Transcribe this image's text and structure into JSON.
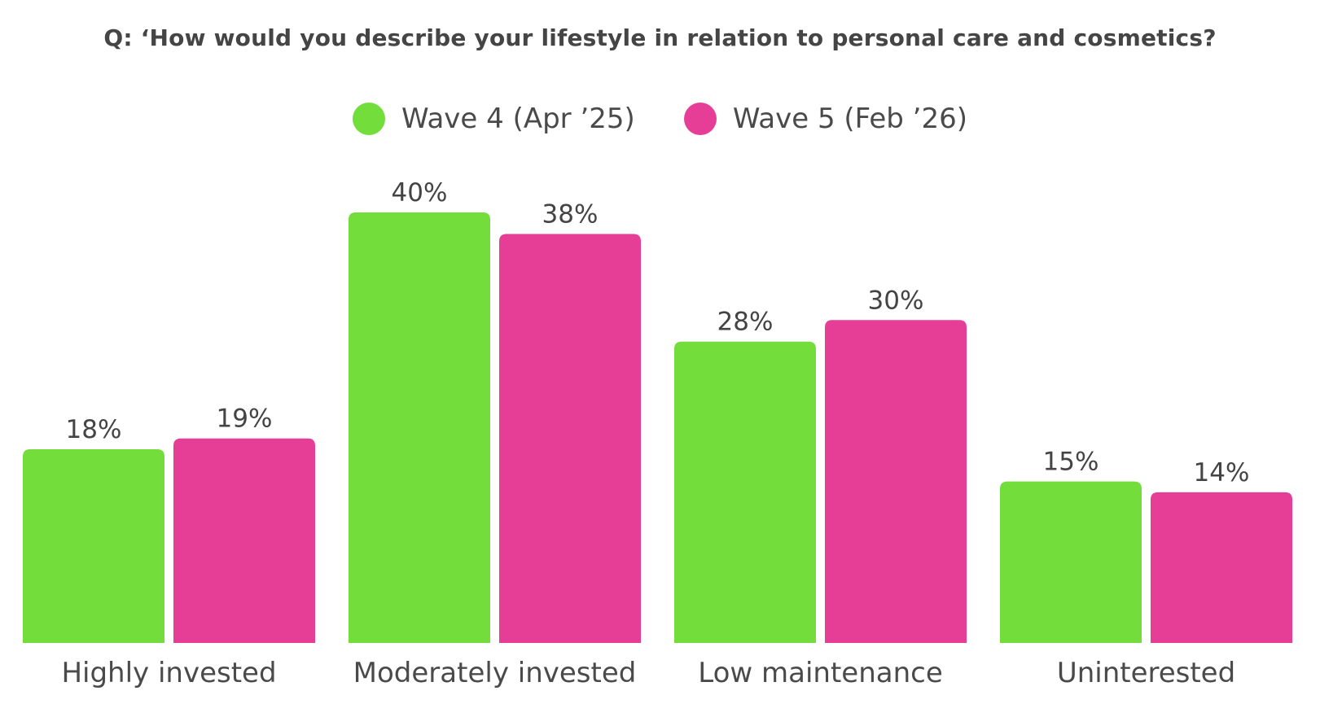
{
  "chart_data": {
    "type": "bar",
    "title": "Q: ‘How would you describe your lifestyle in relation to personal care and cosmetics?",
    "categories": [
      "Highly invested",
      "Moderately invested",
      "Low maintenance",
      "Uninterested"
    ],
    "series": [
      {
        "name": "Wave 4 (Apr ’25)",
        "color": "#72DD3B",
        "values": [
          18,
          40,
          28,
          15
        ],
        "labels": [
          "18%",
          "40%",
          "28%",
          "15%"
        ]
      },
      {
        "name": "Wave 5 (Feb ’26)",
        "color": "#E63E96",
        "values": [
          19,
          38,
          30,
          14
        ],
        "labels": [
          "19%",
          "38%",
          "30%",
          "14%"
        ]
      }
    ],
    "ylim": [
      0,
      40
    ],
    "grid": false,
    "legend_position": "top-center",
    "xlabel": "",
    "ylabel": ""
  }
}
